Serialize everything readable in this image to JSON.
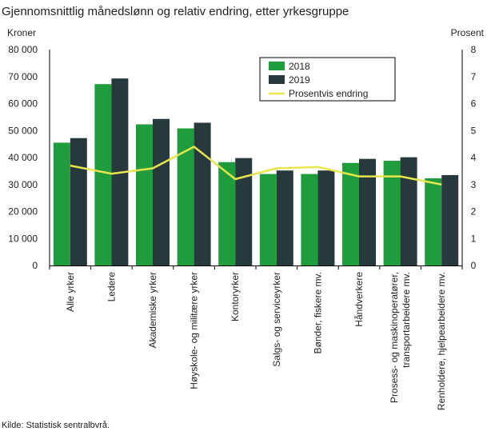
{
  "title": "Gjennomsnittlig månedslønn og relativ endring, etter yrkesgruppe",
  "source": "Kilde: Statistisk sentralbvrå.",
  "chart_data": {
    "type": "bar",
    "title": "Gjennomsnittlig månedslønn og relativ endring, etter yrkesgruppe",
    "ylabel_left": "Kroner",
    "ylabel_right": "Prosent",
    "ylim_left": [
      0,
      80000
    ],
    "ylim_right": [
      0,
      8
    ],
    "yticks_left": [
      "0",
      "10 000",
      "20 000",
      "30 000",
      "40 000",
      "50 000",
      "60 000",
      "70 000",
      "80 000"
    ],
    "yticks_right": [
      "0",
      "1",
      "2",
      "3",
      "4",
      "5",
      "6",
      "7",
      "8"
    ],
    "grid": false,
    "legend_position": "top-right",
    "categories": [
      [
        "Alle yrker"
      ],
      [
        "Ledere"
      ],
      [
        "Akademiske yrker"
      ],
      [
        "Høyskole- og militære yrker"
      ],
      [
        "Kontoryrker"
      ],
      [
        "Salgs- og serviceyrker"
      ],
      [
        "Bønder, fiskere mv."
      ],
      [
        "Håndverkere"
      ],
      [
        "Prosess- og maskinoperatører,",
        "transportarbeidere mv."
      ],
      [
        "Renholdere, hjelpearbeidere mv."
      ]
    ],
    "series": [
      {
        "name": "2018",
        "type": "bar",
        "axis": "left",
        "color": "#1f9c3c",
        "values": [
          45500,
          67200,
          52300,
          50800,
          38300,
          33900,
          33900,
          38000,
          38800,
          32300
        ]
      },
      {
        "name": "2019",
        "type": "bar",
        "axis": "left",
        "color": "#27393d",
        "values": [
          47200,
          69300,
          54300,
          52900,
          39800,
          35200,
          35200,
          39500,
          40100,
          33500
        ]
      },
      {
        "name": "Prosentvis endring",
        "type": "line",
        "axis": "right",
        "color": "#e6e64c",
        "values": [
          3.7,
          3.4,
          3.6,
          4.4,
          3.2,
          3.6,
          3.65,
          3.3,
          3.3,
          3.0
        ]
      }
    ]
  }
}
